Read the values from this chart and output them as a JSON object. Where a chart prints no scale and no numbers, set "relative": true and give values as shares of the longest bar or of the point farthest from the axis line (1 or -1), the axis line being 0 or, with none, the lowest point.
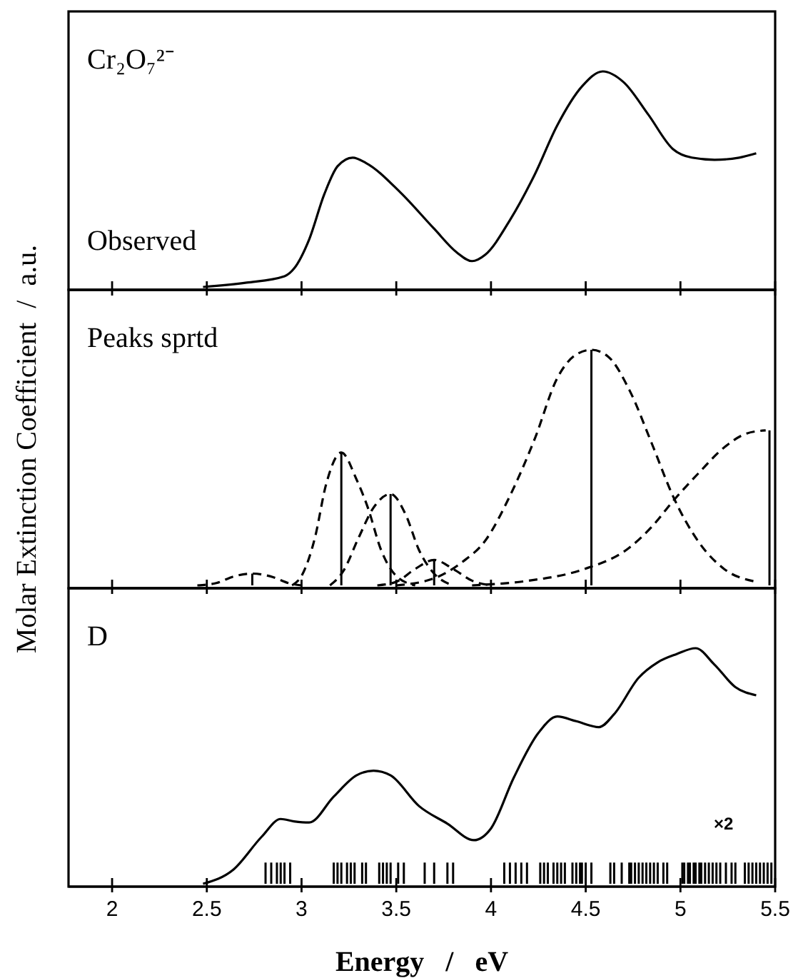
{
  "chart_data": [
    {
      "type": "line",
      "relative": true,
      "xlim": [
        1.77,
        5.5
      ],
      "xticks": [
        2,
        2.5,
        3,
        3.5,
        4,
        4.5,
        5,
        5.5
      ],
      "tick_labels": false,
      "annotations": [
        "Cr₂O₇²⁻",
        "Observed"
      ],
      "line_style": "solid",
      "series": [
        {
          "color": "#000000",
          "x": [
            2.48,
            2.71,
            2.91,
            2.96,
            3.04,
            3.12,
            3.19,
            3.27,
            3.34,
            3.52,
            3.7,
            3.82,
            3.9,
            3.97,
            4.1,
            4.23,
            4.35,
            4.48,
            4.59,
            4.7,
            4.83,
            4.96,
            5.06,
            5.18,
            5.31,
            5.4
          ],
          "values": [
            0,
            0.02,
            0.05,
            0.085,
            0.22,
            0.43,
            0.56,
            0.6,
            0.575,
            0.44,
            0.27,
            0.16,
            0.12,
            0.15,
            0.31,
            0.52,
            0.75,
            0.93,
            1,
            0.95,
            0.8,
            0.64,
            0.6,
            0.59,
            0.6,
            0.62
          ]
        }
      ]
    },
    {
      "type": "line",
      "relative": true,
      "xlim": [
        1.77,
        5.5
      ],
      "xticks": [
        2,
        2.5,
        3,
        3.5,
        4,
        4.5,
        5,
        5.5
      ],
      "tick_labels": false,
      "ylabel": "Molar Extinction Coefficient  /  a.u.",
      "annotations": [
        "Peaks sprtd"
      ],
      "line_style": "dashed",
      "series": [
        {
          "color": "#000000",
          "x": [
            2.45,
            2.55,
            2.65,
            2.74,
            2.85,
            2.93,
            3.0
          ],
          "values": [
            0,
            0.01,
            0.04,
            0.05,
            0.035,
            0.01,
            0
          ]
        },
        {
          "color": "#000000",
          "x": [
            2.95,
            3.0,
            3.07,
            3.13,
            3.21,
            3.29,
            3.35,
            3.42,
            3.5,
            3.6
          ],
          "values": [
            0,
            0.04,
            0.2,
            0.43,
            0.564,
            0.45,
            0.33,
            0.15,
            0.04,
            0
          ]
        },
        {
          "color": "#000000",
          "x": [
            3.15,
            3.22,
            3.3,
            3.38,
            3.47,
            3.55,
            3.62,
            3.7,
            3.8
          ],
          "values": [
            0,
            0.06,
            0.2,
            0.33,
            0.388,
            0.3,
            0.15,
            0.05,
            0
          ]
        },
        {
          "color": "#000000",
          "x": [
            3.4,
            3.5,
            3.6,
            3.7,
            3.8,
            3.9,
            4.0
          ],
          "values": [
            0,
            0.015,
            0.07,
            0.108,
            0.07,
            0.02,
            0
          ]
        },
        {
          "color": "#000000",
          "x": [
            3.5,
            3.7,
            3.85,
            3.97,
            4.1,
            4.23,
            4.35,
            4.45,
            4.53,
            4.62,
            4.73,
            4.85,
            4.96,
            5.1,
            5.23,
            5.4
          ],
          "values": [
            0,
            0.03,
            0.1,
            0.19,
            0.38,
            0.62,
            0.88,
            0.98,
            1,
            0.97,
            0.83,
            0.6,
            0.38,
            0.18,
            0.07,
            0.015
          ]
        },
        {
          "color": "#000000",
          "x": [
            3.9,
            4.2,
            4.48,
            4.73,
            4.85,
            4.96,
            5.1,
            5.23,
            5.35,
            5.45
          ],
          "values": [
            0,
            0.02,
            0.066,
            0.16,
            0.25,
            0.357,
            0.48,
            0.585,
            0.645,
            0.658
          ]
        },
        {
          "type": "bar",
          "color": "#000000",
          "x": [
            2.74,
            3.21,
            3.47,
            3.7,
            4.53,
            5.47
          ],
          "values": [
            0.05,
            0.564,
            0.388,
            0.108,
            1,
            0.658
          ]
        }
      ]
    },
    {
      "type": "line",
      "relative": true,
      "xlim": [
        1.77,
        5.5
      ],
      "xticks": [
        2,
        2.5,
        3,
        3.5,
        4,
        4.5,
        5,
        5.5
      ],
      "tick_labels": "x",
      "xlabel": "Energy   /   eV",
      "annotations": [
        "D",
        "×2"
      ],
      "line_style": "solid",
      "series": [
        {
          "color": "#000000",
          "x": [
            2.48,
            2.64,
            2.79,
            2.89,
            2.96,
            3.04,
            3.17,
            3.29,
            3.38,
            3.47,
            3.62,
            3.77,
            3.91,
            4.0,
            4.12,
            4.25,
            4.35,
            4.45,
            4.57,
            4.65,
            4.78,
            4.88,
            4.98,
            5.08,
            5.18,
            5.29,
            5.4
          ],
          "values": [
            0,
            0.06,
            0.2,
            0.275,
            0.265,
            0.26,
            0.37,
            0.46,
            0.48,
            0.46,
            0.33,
            0.255,
            0.185,
            0.235,
            0.45,
            0.64,
            0.71,
            0.69,
            0.665,
            0.72,
            0.875,
            0.94,
            0.975,
            1,
            0.93,
            0.835,
            0.8
          ]
        },
        {
          "type": "bar",
          "color": "#000000",
          "x": [
            2.81,
            2.84,
            2.87,
            2.89,
            2.91,
            2.94,
            3.17,
            3.19,
            3.21,
            3.24,
            3.26,
            3.28,
            3.32,
            3.34,
            3.41,
            3.43,
            3.45,
            3.47,
            3.51,
            3.54,
            3.65,
            3.7,
            3.77,
            3.8,
            4.07,
            4.1,
            4.13,
            4.16,
            4.19,
            4.26,
            4.28,
            4.3,
            4.33,
            4.35,
            4.37,
            4.39,
            4.43,
            4.45,
            4.47,
            4.48,
            4.5,
            4.53,
            4.63,
            4.65,
            4.69,
            4.73,
            4.74,
            4.76,
            4.78,
            4.8,
            4.82,
            4.84,
            4.86,
            4.88,
            4.91,
            4.93,
            5.01,
            5.02,
            5.04,
            5.05,
            5.07,
            5.08,
            5.1,
            5.11,
            5.13,
            5.15,
            5.17,
            5.19,
            5.21,
            5.24,
            5.27,
            5.29,
            5.34,
            5.36,
            5.38,
            5.4,
            5.42,
            5.44,
            5.46,
            5.48
          ],
          "values": [
            0.09,
            0.09,
            0.09,
            0.09,
            0.09,
            0.09,
            0.09,
            0.09,
            0.09,
            0.09,
            0.09,
            0.09,
            0.09,
            0.09,
            0.09,
            0.09,
            0.09,
            0.09,
            0.09,
            0.09,
            0.09,
            0.09,
            0.09,
            0.09,
            0.09,
            0.09,
            0.09,
            0.09,
            0.09,
            0.09,
            0.09,
            0.09,
            0.09,
            0.09,
            0.09,
            0.09,
            0.09,
            0.09,
            0.09,
            0.09,
            0.09,
            0.09,
            0.09,
            0.09,
            0.09,
            0.09,
            0.09,
            0.09,
            0.09,
            0.09,
            0.09,
            0.09,
            0.09,
            0.09,
            0.09,
            0.09,
            0.09,
            0.09,
            0.09,
            0.09,
            0.09,
            0.09,
            0.09,
            0.09,
            0.09,
            0.09,
            0.09,
            0.09,
            0.09,
            0.09,
            0.09,
            0.09,
            0.09,
            0.09,
            0.09,
            0.09,
            0.09,
            0.09,
            0.09,
            0.09
          ]
        }
      ]
    }
  ]
}
